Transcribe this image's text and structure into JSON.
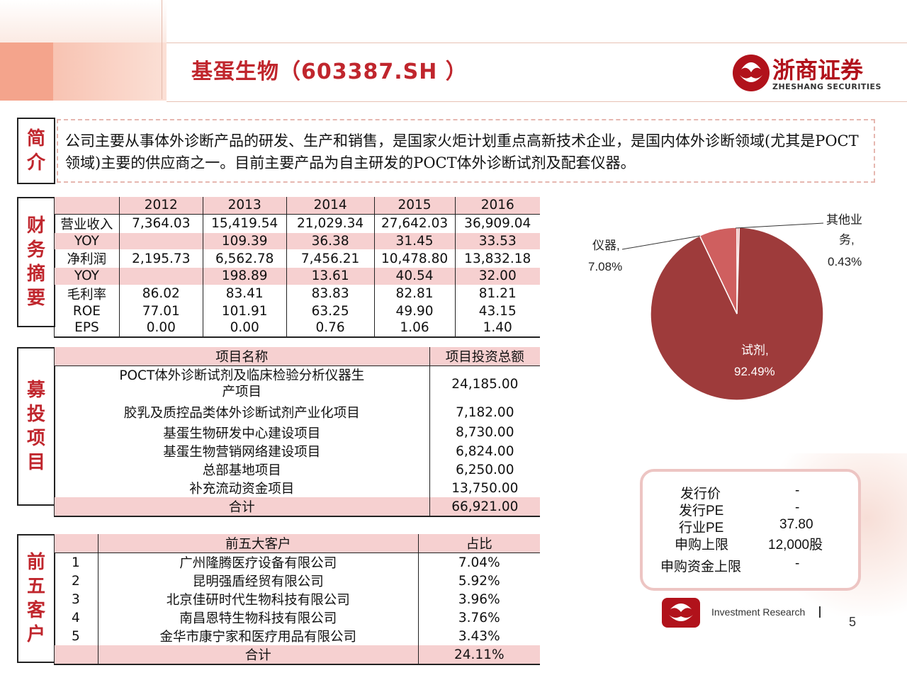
{
  "header": {
    "title": "基蛋生物（603387.SH ）",
    "logo_text": "浙商证券",
    "logo_sub": "ZHESHANG SECURITIES"
  },
  "sections": {
    "intro_label": [
      "简",
      "介"
    ],
    "finance_label": [
      "财",
      "务",
      "摘",
      "要"
    ],
    "projects_label": [
      "募",
      "投",
      "项",
      "目"
    ],
    "customers_label": [
      "前",
      "五",
      "客",
      "户"
    ]
  },
  "intro": {
    "text": "公司主要从事体外诊断产品的研发、生产和销售，是国家火炬计划重点高新技术企业，是国内体外诊断领域(尤其是POCT领域)主要的供应商之一。目前主要产品为自主研发的POCT体外诊断试剂及配套仪器。"
  },
  "finance": {
    "years": [
      "2012",
      "2013",
      "2014",
      "2015",
      "2016"
    ],
    "rows": [
      {
        "label": "营业收入",
        "values": [
          "7,364.03",
          "15,419.54",
          "21,029.34",
          "27,642.03",
          "36,909.04"
        ]
      },
      {
        "label": "YOY",
        "values": [
          "",
          "109.39",
          "36.38",
          "31.45",
          "33.53"
        ]
      },
      {
        "label": "净利润",
        "values": [
          "2,195.73",
          "6,562.78",
          "7,456.21",
          "10,478.80",
          "13,832.18"
        ]
      },
      {
        "label": "YOY",
        "values": [
          "",
          "198.89",
          "13.61",
          "40.54",
          "32.00"
        ]
      },
      {
        "label": "毛利率",
        "values": [
          "86.02",
          "83.41",
          "83.83",
          "82.81",
          "81.21"
        ]
      },
      {
        "label": "ROE",
        "values": [
          "77.01",
          "101.91",
          "63.25",
          "49.90",
          "43.15"
        ]
      },
      {
        "label": "EPS",
        "values": [
          "0.00",
          "0.00",
          "0.76",
          "1.06",
          "1.40"
        ]
      }
    ]
  },
  "projects": {
    "col_name": "项目名称",
    "col_amount": "项目投资总额",
    "rows": [
      {
        "name": "POCT体外诊断试剂及临床检验分析仪器生产项目",
        "amount": "24,185.00"
      },
      {
        "name": "胶乳及质控品类体外诊断试剂产业化项目",
        "amount": "7,182.00"
      },
      {
        "name": "基蛋生物研发中心建设项目",
        "amount": "8,730.00"
      },
      {
        "name": "基蛋生物营销网络建设项目",
        "amount": "6,824.00"
      },
      {
        "name": "总部基地项目",
        "amount": "6,250.00"
      },
      {
        "name": "补充流动资金项目",
        "amount": "13,750.00"
      }
    ],
    "total_label": "合计",
    "total_amount": "66,921.00"
  },
  "customers": {
    "col_name": "前五大客户",
    "col_share": "占比",
    "rows": [
      {
        "rank": "1",
        "name": "广州隆腾医疗设备有限公司",
        "share": "7.04%"
      },
      {
        "rank": "2",
        "name": "昆明强盾经贸有限公司",
        "share": "5.92%"
      },
      {
        "rank": "3",
        "name": "北京佳研时代生物科技有限公司",
        "share": "3.96%"
      },
      {
        "rank": "4",
        "name": "南昌恩特生物科技有限公司",
        "share": "3.76%"
      },
      {
        "rank": "5",
        "name": "金华市康宁家和医疗用品有限公司",
        "share": "3.43%"
      }
    ],
    "total_label": "合计",
    "total_share": "24.11%"
  },
  "chart_data": {
    "type": "pie",
    "slices": [
      {
        "label": "试剂",
        "value": 92.49,
        "text": "92.49%",
        "color": "#9e3b3b"
      },
      {
        "label": "仪器",
        "value": 7.08,
        "text": "7.08%",
        "color": "#cf5f5f"
      },
      {
        "label": "其他业务",
        "value": 0.43,
        "text": "0.43%",
        "color": "#e9a2a2"
      }
    ],
    "labels": {
      "reagent": [
        "试剂,",
        "92.49%"
      ],
      "instrument": [
        "仪器,",
        "7.08%"
      ],
      "other": [
        "其他业",
        "务,",
        "0.43%"
      ]
    }
  },
  "ipo": {
    "rows": [
      {
        "label": "发行价",
        "value": "-"
      },
      {
        "label": "发行PE",
        "value": "-"
      },
      {
        "label": "行业PE",
        "value": "37.80"
      },
      {
        "label": "申购上限",
        "value": "12,000股"
      },
      {
        "label": "申购资金上限",
        "value": "-"
      }
    ]
  },
  "footer": {
    "text": "Investment Research",
    "page": "5"
  },
  "colors": {
    "accent": "#c0262d",
    "table_pink": "#f6d0d0"
  }
}
